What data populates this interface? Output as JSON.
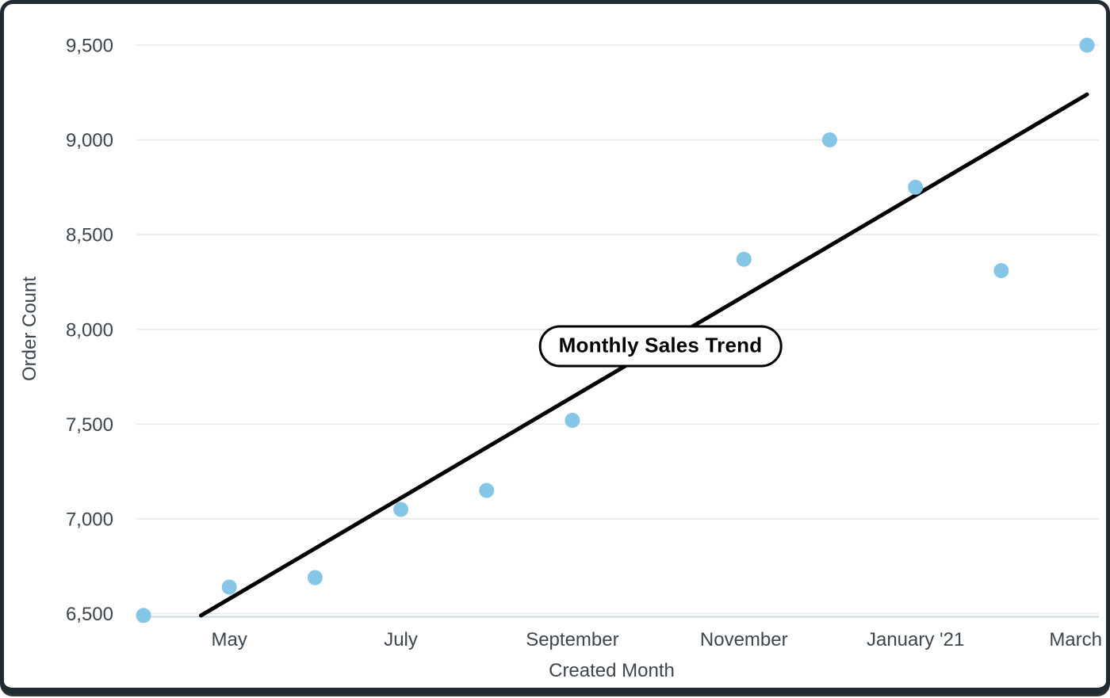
{
  "chart_data": {
    "type": "scatter",
    "title": "Monthly Sales Trend",
    "xlabel": "Created Month",
    "ylabel": "Order Count",
    "ylim": [
      6500,
      9500
    ],
    "y_ticks": [
      9500,
      9000,
      8500,
      8000,
      7500,
      7000,
      6500
    ],
    "y_tick_labels": [
      "9,500",
      "9,000",
      "8,500",
      "8,000",
      "7,500",
      "7,000",
      "6,500"
    ],
    "x_ticks": [
      {
        "m": 1,
        "label": "May"
      },
      {
        "m": 3,
        "label": "July"
      },
      {
        "m": 5,
        "label": "September"
      },
      {
        "m": 7,
        "label": "November"
      },
      {
        "m": 9,
        "label": "January '21"
      },
      {
        "m": 11,
        "label": "March"
      }
    ],
    "grid": true,
    "legend": "none",
    "points": [
      {
        "month": "April '20",
        "m": 0,
        "value": 6490
      },
      {
        "month": "May",
        "m": 1,
        "value": 6640
      },
      {
        "month": "June",
        "m": 2,
        "value": 6690
      },
      {
        "month": "July",
        "m": 3,
        "value": 7050
      },
      {
        "month": "August",
        "m": 4,
        "value": 7150
      },
      {
        "month": "September",
        "m": 5,
        "value": 7520
      },
      {
        "month": "November",
        "m": 7,
        "value": 8370
      },
      {
        "month": "December",
        "m": 8,
        "value": 9000
      },
      {
        "month": "January '21",
        "m": 9,
        "value": 8750
      },
      {
        "month": "February",
        "m": 10,
        "value": 8310
      },
      {
        "month": "March",
        "m": 11,
        "value": 9500
      }
    ],
    "trend_line": {
      "start": {
        "m": 0.67,
        "value": 6490
      },
      "end": {
        "m": 11.0,
        "value": 9240
      }
    },
    "colors": {
      "point": "#85C6E6",
      "trend": "#000000",
      "grid": "#e8e8e8",
      "axis_line": "#c9d4e2",
      "label": "#3b454e",
      "pill_border": "#000000",
      "pill_bg": "#ffffff",
      "card_border": "#1f2a31"
    }
  }
}
